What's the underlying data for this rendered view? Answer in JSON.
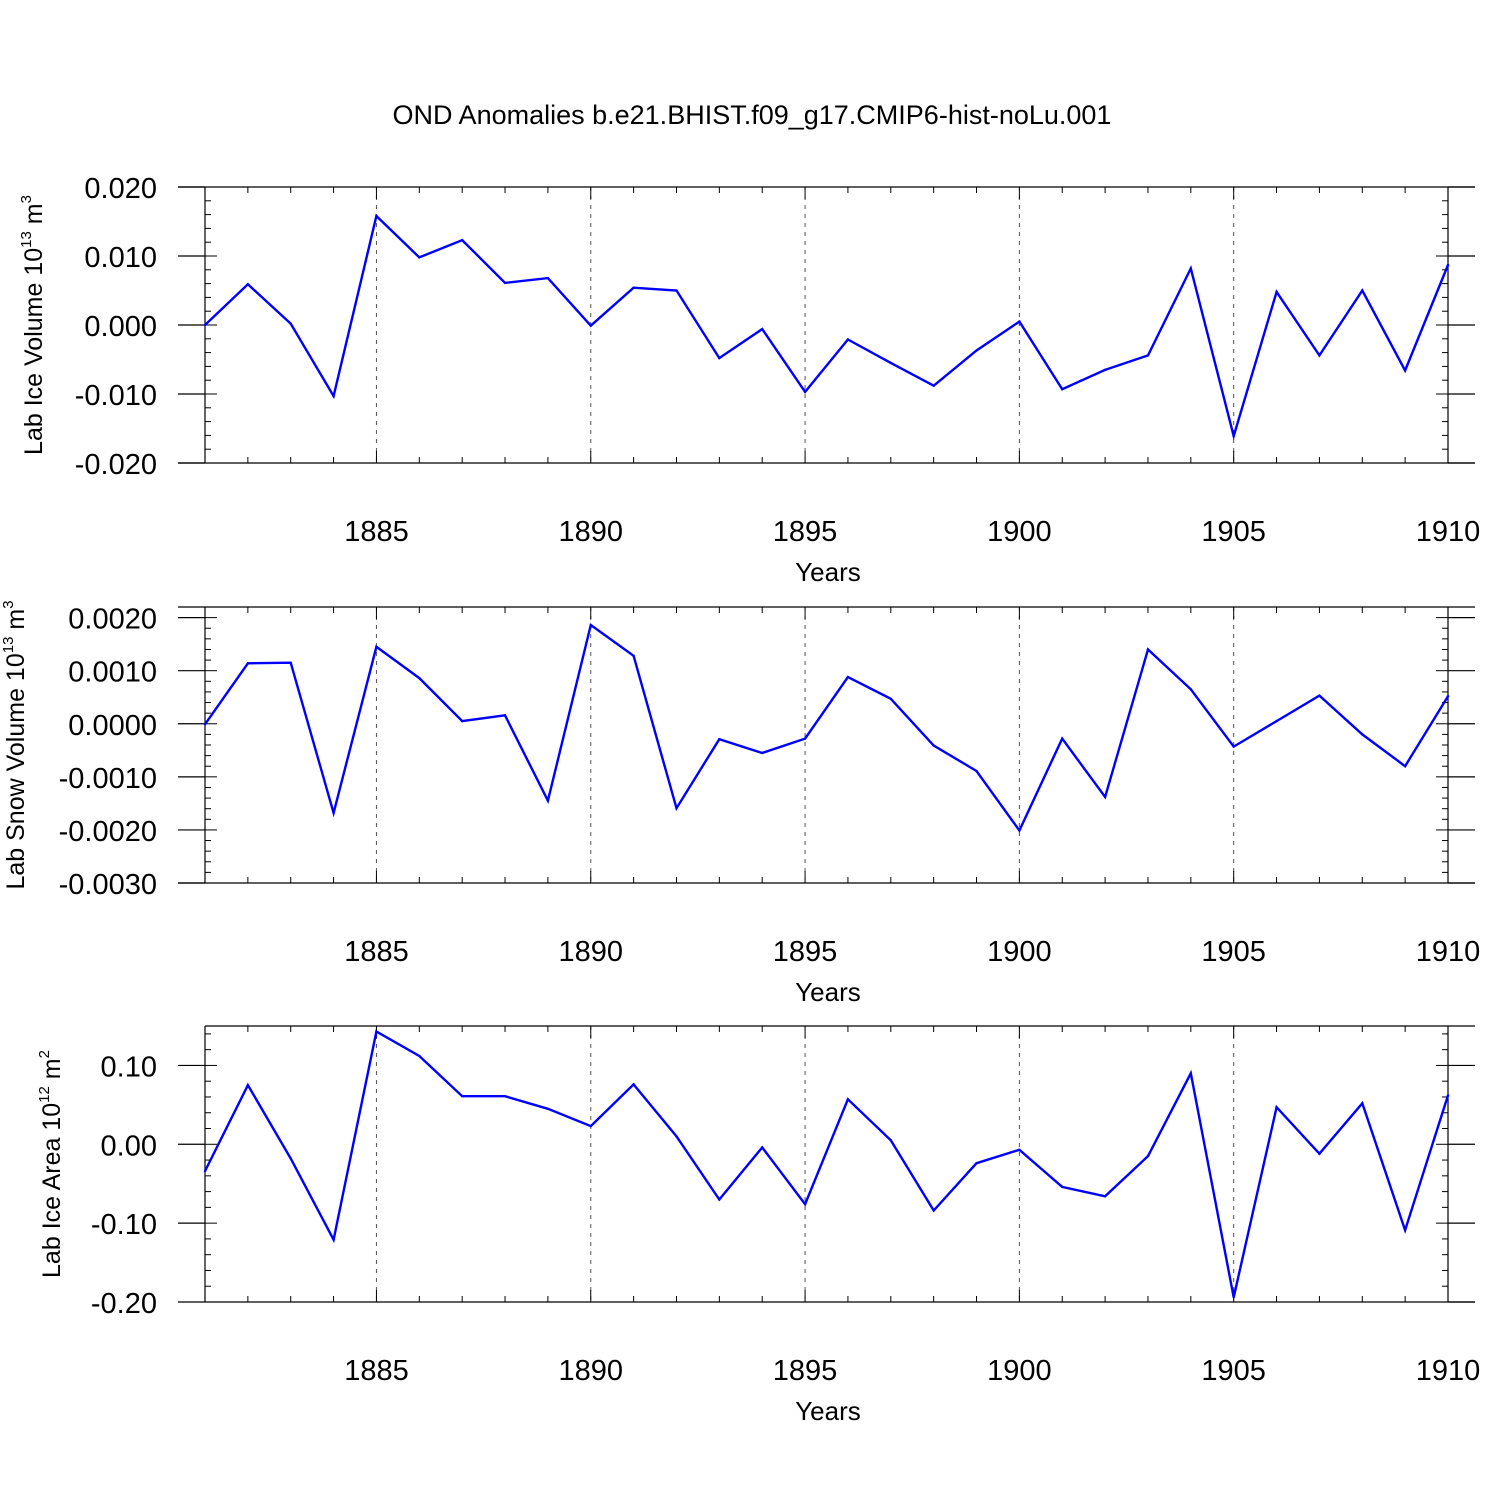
{
  "title": "OND Anomalies b.e21.BHIST.f09_g17.CMIP6-hist-noLu.001",
  "colors": {
    "line": "#0000ff",
    "axis": "#000000",
    "grid": "#555555"
  },
  "chart_data": [
    {
      "type": "line",
      "ylabel_main": "Lab Ice Volume 10",
      "ylabel_exp": "13",
      "ylabel_unit": " m",
      "ylabel_unit_exp": "3",
      "xlabel": "Years",
      "xlim": [
        1881,
        1910
      ],
      "ylim": [
        -0.02,
        0.02
      ],
      "yticks": [
        0.02,
        0.01,
        0.0,
        -0.01,
        -0.02
      ],
      "ytick_labels": [
        "0.020",
        "0.010",
        "0.000",
        "-0.010",
        "-0.020"
      ],
      "xticks": [
        1885,
        1890,
        1895,
        1900,
        1905,
        1910
      ],
      "xtick_labels": [
        "1885",
        "1890",
        "1895",
        "1900",
        "1905",
        "1910"
      ],
      "x": [
        1881,
        1882,
        1883,
        1884,
        1885,
        1886,
        1887,
        1888,
        1889,
        1890,
        1891,
        1892,
        1893,
        1894,
        1895,
        1896,
        1897,
        1898,
        1899,
        1900,
        1901,
        1902,
        1903,
        1904,
        1905,
        1906,
        1907,
        1908,
        1909,
        1910
      ],
      "values": [
        0.0,
        0.0059,
        0.0002,
        -0.0103,
        0.0158,
        0.0098,
        0.0123,
        0.0061,
        0.0068,
        -0.0001,
        0.0054,
        0.005,
        -0.0048,
        -0.0006,
        -0.0097,
        -0.0021,
        -0.0055,
        -0.0088,
        -0.0037,
        0.0005,
        -0.0093,
        -0.0065,
        -0.0044,
        0.0082,
        -0.0161,
        0.0048,
        -0.0044,
        0.005,
        -0.0066,
        0.0087
      ]
    },
    {
      "type": "line",
      "ylabel_main": "Lab Snow Volume 10",
      "ylabel_exp": "13",
      "ylabel_unit": " m",
      "ylabel_unit_exp": "3",
      "xlabel": "Years",
      "xlim": [
        1881,
        1910
      ],
      "ylim": [
        -0.003,
        0.0022
      ],
      "yticks": [
        0.002,
        0.001,
        0.0,
        -0.001,
        -0.002,
        -0.003
      ],
      "ytick_labels": [
        "0.0020",
        "0.0010",
        "0.0000",
        "-0.0010",
        "-0.0020",
        "-0.0030"
      ],
      "xticks": [
        1885,
        1890,
        1895,
        1900,
        1905,
        1910
      ],
      "xtick_labels": [
        "1885",
        "1890",
        "1895",
        "1900",
        "1905",
        "1910"
      ],
      "x": [
        1881,
        1882,
        1883,
        1884,
        1885,
        1886,
        1887,
        1888,
        1889,
        1890,
        1891,
        1892,
        1893,
        1894,
        1895,
        1896,
        1897,
        1898,
        1899,
        1900,
        1901,
        1902,
        1903,
        1904,
        1905,
        1906,
        1907,
        1908,
        1909,
        1910
      ],
      "values": [
        -1e-05,
        0.00114,
        0.00115,
        -0.00168,
        0.00145,
        0.00086,
        5e-05,
        0.00016,
        -0.00145,
        0.00186,
        0.00128,
        -0.00159,
        -0.00029,
        -0.00055,
        -0.00028,
        0.00088,
        0.00047,
        -0.00041,
        -0.00089,
        -0.00201,
        -0.00028,
        -0.00138,
        0.0014,
        0.00065,
        -0.00043,
        5e-05,
        0.00053,
        -0.0002,
        -0.0008,
        0.00052
      ]
    },
    {
      "type": "line",
      "ylabel_main": "Lab Ice Area 10",
      "ylabel_exp": "12",
      "ylabel_unit": " m",
      "ylabel_unit_exp": "2",
      "xlabel": "Years",
      "xlim": [
        1881,
        1910
      ],
      "ylim": [
        -0.2,
        0.15
      ],
      "yticks": [
        0.1,
        0.0,
        -0.1,
        -0.2
      ],
      "ytick_labels": [
        "0.10",
        "0.00",
        "-0.10",
        "-0.20"
      ],
      "xticks": [
        1885,
        1890,
        1895,
        1900,
        1905,
        1910
      ],
      "xtick_labels": [
        "1885",
        "1890",
        "1895",
        "1900",
        "1905",
        "1910"
      ],
      "x": [
        1881,
        1882,
        1883,
        1884,
        1885,
        1886,
        1887,
        1888,
        1889,
        1890,
        1891,
        1892,
        1893,
        1894,
        1895,
        1896,
        1897,
        1898,
        1899,
        1900,
        1901,
        1902,
        1903,
        1904,
        1905,
        1906,
        1907,
        1908,
        1909,
        1910
      ],
      "values": [
        -0.034,
        0.075,
        -0.018,
        -0.121,
        0.143,
        0.112,
        0.061,
        0.061,
        0.045,
        0.023,
        0.076,
        0.01,
        -0.07,
        -0.004,
        -0.076,
        0.057,
        0.005,
        -0.084,
        -0.024,
        -0.007,
        -0.054,
        -0.066,
        -0.015,
        0.09,
        -0.194,
        0.047,
        -0.012,
        0.052,
        -0.109,
        0.062
      ]
    }
  ]
}
